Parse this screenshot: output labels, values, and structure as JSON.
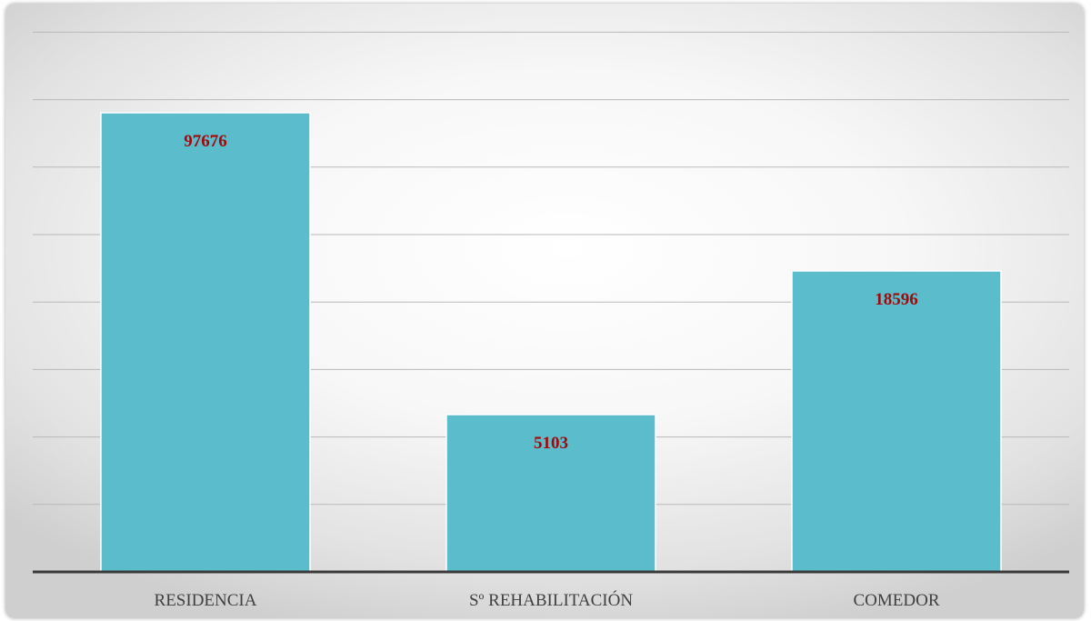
{
  "chart_data": {
    "type": "bar",
    "categories": [
      "RESIDENCIA",
      "Sº REHABILITACIÓN",
      "COMEDOR"
    ],
    "values": [
      97676,
      5103,
      18596
    ],
    "data_labels": [
      "97676",
      "5103",
      "18596"
    ],
    "title": "",
    "xlabel": "",
    "ylabel": "",
    "grid": true,
    "legend": "none",
    "colors": {
      "bar": "#5bbccc",
      "label": "#a00a0a",
      "gridline": "#b9b9b9",
      "axis": "#3a3a3a"
    }
  }
}
